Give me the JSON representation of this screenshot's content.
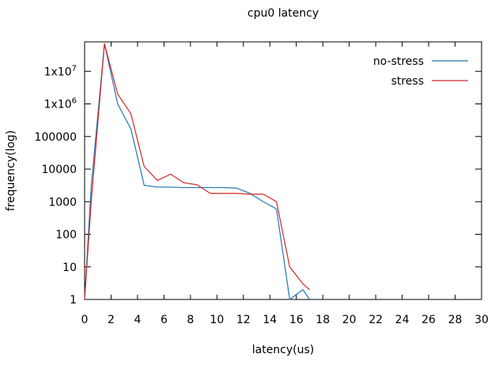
{
  "chart_data": {
    "type": "line",
    "title": "cpu0 latency",
    "xlabel": "latency(us)",
    "ylabel": "frequency(log)",
    "xlim": [
      0,
      30
    ],
    "ylim": [
      1,
      80000000
    ],
    "yscale": "log",
    "x_ticks": [
      0,
      2,
      4,
      6,
      8,
      10,
      12,
      14,
      16,
      18,
      20,
      22,
      24,
      26,
      28,
      30
    ],
    "y_ticks": [
      {
        "value": 1,
        "label": "1"
      },
      {
        "value": 10,
        "label": "10"
      },
      {
        "value": 100,
        "label": "100"
      },
      {
        "value": 1000,
        "label": "1000"
      },
      {
        "value": 10000,
        "label": "10000"
      },
      {
        "value": 100000,
        "label": "100000"
      },
      {
        "value": 1000000,
        "label": "1x10",
        "sup": "6"
      },
      {
        "value": 10000000,
        "label": "1x10",
        "sup": "7"
      }
    ],
    "grid": false,
    "legend_position": "top-right",
    "series": [
      {
        "name": "no-stress",
        "color": "#1f77b4",
        "points": [
          [
            0,
            1
          ],
          [
            0.5,
            3000
          ],
          [
            1.5,
            70000000
          ],
          [
            2.5,
            1000000
          ],
          [
            3.5,
            170000
          ],
          [
            4.5,
            3200
          ],
          [
            5.5,
            2800
          ],
          [
            6.5,
            2800
          ],
          [
            7.5,
            2700
          ],
          [
            8.5,
            2700
          ],
          [
            9.5,
            2700
          ],
          [
            10.5,
            2700
          ],
          [
            11.5,
            2600
          ],
          [
            12.5,
            1800
          ],
          [
            13.5,
            1000
          ],
          [
            14.5,
            600
          ],
          [
            15.5,
            1
          ],
          [
            16.5,
            2
          ],
          [
            17,
            1
          ]
        ]
      },
      {
        "name": "stress",
        "color": "#d62728",
        "points": [
          [
            0,
            1
          ],
          [
            0.5,
            1000
          ],
          [
            1.5,
            70000000
          ],
          [
            2.5,
            2000000
          ],
          [
            3.5,
            500000
          ],
          [
            4.5,
            12000
          ],
          [
            5.5,
            4500
          ],
          [
            6.5,
            7000
          ],
          [
            7.5,
            3800
          ],
          [
            8.5,
            3300
          ],
          [
            9.5,
            1800
          ],
          [
            10.5,
            1800
          ],
          [
            11.5,
            1800
          ],
          [
            12.5,
            1700
          ],
          [
            13.5,
            1700
          ],
          [
            14.5,
            1000
          ],
          [
            15.5,
            10
          ],
          [
            16.5,
            3
          ],
          [
            17,
            2
          ]
        ]
      }
    ]
  }
}
